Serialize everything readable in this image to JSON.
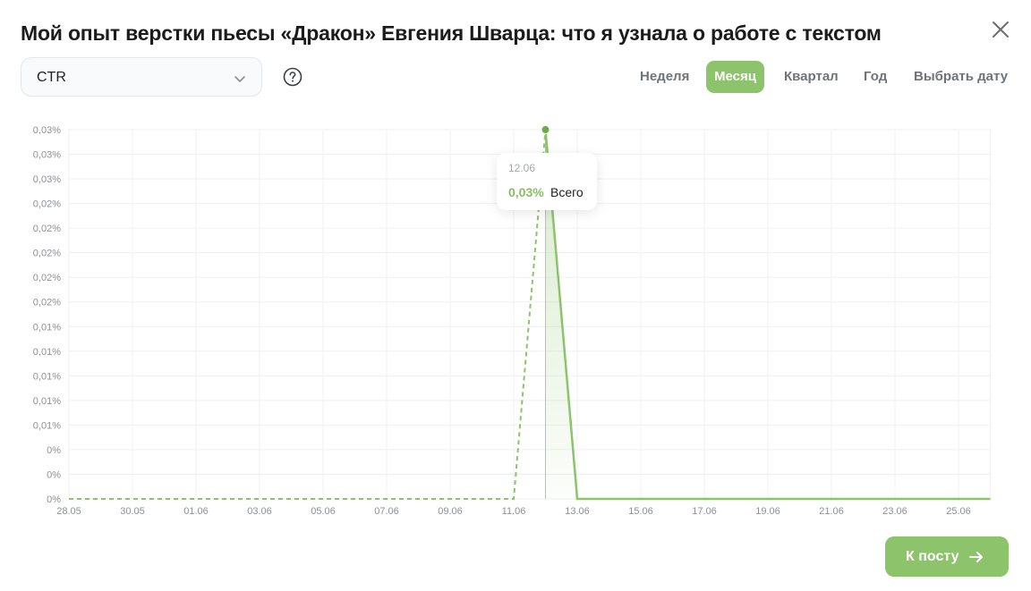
{
  "modal": {
    "title": "Мой опыт верстки пьесы «Дракон» Евгения Шварца: что я узнала о работе с текстом",
    "metric_select": {
      "value": "CTR"
    },
    "periods": [
      {
        "label": "Неделя",
        "active": false
      },
      {
        "label": "Месяц",
        "active": true
      },
      {
        "label": "Квартал",
        "active": false
      },
      {
        "label": "Год",
        "active": false
      },
      {
        "label": "Выбрать дату",
        "active": false
      }
    ],
    "tooltip": {
      "date": "12.06",
      "value": "0,03%",
      "series": "Всего"
    },
    "to_post_button": "К посту",
    "colors": {
      "accent": "#8cc36b",
      "accent_dark": "#85bf5f"
    },
    "icons": [
      "close-icon",
      "chevron-down-icon",
      "help-circle-icon",
      "arrow-right-icon"
    ]
  },
  "chart_data": {
    "type": "line",
    "x": [
      "28.05",
      "29.05",
      "30.05",
      "31.05",
      "01.06",
      "02.06",
      "03.06",
      "04.06",
      "05.06",
      "06.06",
      "07.06",
      "08.06",
      "09.06",
      "10.06",
      "11.06",
      "12.06",
      "13.06",
      "14.06",
      "15.06",
      "16.06",
      "17.06",
      "18.06",
      "19.06",
      "20.06",
      "21.06",
      "22.06",
      "23.06",
      "24.06",
      "25.06",
      "26.06"
    ],
    "xticks": [
      "28.05",
      "30.05",
      "01.06",
      "03.06",
      "05.06",
      "07.06",
      "09.06",
      "11.06",
      "13.06",
      "15.06",
      "17.06",
      "19.06",
      "21.06",
      "23.06",
      "25.06"
    ],
    "yticks": [
      "0,03%",
      "0,03%",
      "0,03%",
      "0,02%",
      "0,02%",
      "0,02%",
      "0,02%",
      "0,02%",
      "0,01%",
      "0,01%",
      "0,01%",
      "0,01%",
      "0,01%",
      "0%",
      "0%",
      "0%"
    ],
    "ylim": [
      0,
      0.03
    ],
    "series": [
      {
        "name": "Всего",
        "values": [
          0,
          0,
          0,
          0,
          0,
          0,
          0,
          0,
          0,
          0,
          0,
          0,
          0,
          0,
          0,
          0.03,
          0,
          0,
          0,
          0,
          0,
          0,
          0,
          0,
          0,
          0,
          0,
          0,
          0,
          0
        ]
      }
    ],
    "highlight": {
      "x": "12.06",
      "value": 0.03
    },
    "grid": true
  }
}
